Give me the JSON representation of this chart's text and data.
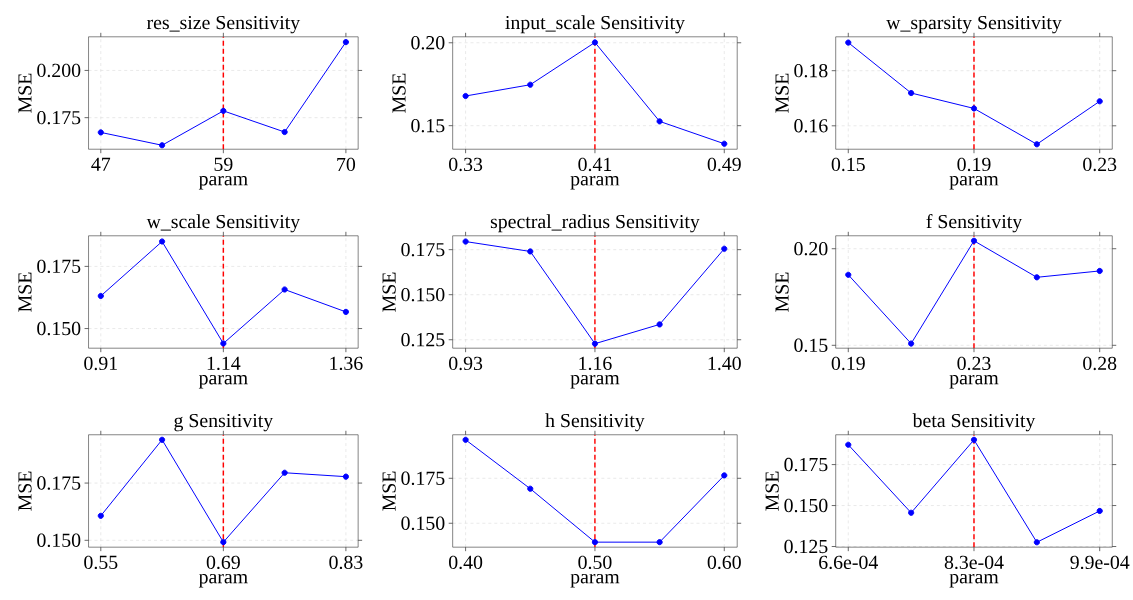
{
  "chart_data": [
    {
      "type": "line",
      "title": "res_size Sensitivity",
      "xlabel": "param",
      "ylabel": "MSE",
      "color": "#0000ff",
      "marker": "circle",
      "grid": true,
      "x": [
        47,
        52.75,
        58.5,
        64.25,
        70
      ],
      "values": [
        0.1672,
        0.1604,
        0.1786,
        0.1674,
        0.215
      ],
      "xlim": [
        45.85,
        71.15
      ],
      "ylim": [
        0.1583,
        0.2178
      ],
      "xticks": [
        {
          "value": 47,
          "label": "47"
        },
        {
          "value": 58.5,
          "label": "59"
        },
        {
          "value": 70,
          "label": "70"
        }
      ],
      "yticks": [
        {
          "value": 0.175,
          "label": "0.175"
        },
        {
          "value": 0.2,
          "label": "0.200"
        }
      ],
      "ref_lines": [
        {
          "axis": "x",
          "value": 58.5,
          "color": "#ff0000",
          "line_style": "dashed"
        }
      ]
    },
    {
      "type": "line",
      "title": "input_scale Sensitivity",
      "xlabel": "param",
      "ylabel": "MSE",
      "color": "#0000ff",
      "marker": "circle",
      "grid": true,
      "x": [
        0.33,
        0.37,
        0.41,
        0.45,
        0.49
      ],
      "values": [
        0.1679,
        0.1747,
        0.2002,
        0.1526,
        0.1391
      ],
      "xlim": [
        0.322,
        0.498
      ],
      "ylim": [
        0.1358,
        0.2036
      ],
      "xticks": [
        {
          "value": 0.33,
          "label": "0.33"
        },
        {
          "value": 0.41,
          "label": "0.41"
        },
        {
          "value": 0.49,
          "label": "0.49"
        }
      ],
      "yticks": [
        {
          "value": 0.15,
          "label": "0.15"
        },
        {
          "value": 0.2,
          "label": "0.20"
        }
      ],
      "ref_lines": [
        {
          "axis": "x",
          "value": 0.41,
          "color": "#ff0000",
          "line_style": "dashed"
        }
      ]
    },
    {
      "type": "line",
      "title": "w_sparsity Sensitivity",
      "xlabel": "param",
      "ylabel": "MSE",
      "color": "#0000ff",
      "marker": "circle",
      "grid": true,
      "x": [
        0.15,
        0.17,
        0.19,
        0.21,
        0.23
      ],
      "values": [
        0.1902,
        0.1719,
        0.1663,
        0.1533,
        0.1689
      ],
      "xlim": [
        0.146,
        0.234
      ],
      "ylim": [
        0.1515,
        0.1923
      ],
      "xticks": [
        {
          "value": 0.15,
          "label": "0.15"
        },
        {
          "value": 0.19,
          "label": "0.19"
        },
        {
          "value": 0.23,
          "label": "0.23"
        }
      ],
      "yticks": [
        {
          "value": 0.16,
          "label": "0.16"
        },
        {
          "value": 0.18,
          "label": "0.18"
        }
      ],
      "ref_lines": [
        {
          "axis": "x",
          "value": 0.19,
          "color": "#ff0000",
          "line_style": "dashed"
        }
      ]
    },
    {
      "type": "line",
      "title": "w_scale Sensitivity",
      "xlabel": "param",
      "ylabel": "MSE",
      "color": "#0000ff",
      "marker": "circle",
      "grid": true,
      "x": [
        0.91,
        1.0225,
        1.135,
        1.2475,
        1.36
      ],
      "values": [
        0.1631,
        0.185,
        0.144,
        0.1657,
        0.1567
      ],
      "xlim": [
        0.8875,
        1.3825
      ],
      "ylim": [
        0.1421,
        0.1873
      ],
      "xticks": [
        {
          "value": 0.91,
          "label": "0.91"
        },
        {
          "value": 1.135,
          "label": "1.14"
        },
        {
          "value": 1.36,
          "label": "1.36"
        }
      ],
      "yticks": [
        {
          "value": 0.15,
          "label": "0.150"
        },
        {
          "value": 0.175,
          "label": "0.175"
        }
      ],
      "ref_lines": [
        {
          "axis": "x",
          "value": 1.135,
          "color": "#ff0000",
          "line_style": "dashed"
        }
      ]
    },
    {
      "type": "line",
      "title": "spectral_radius Sensitivity",
      "xlabel": "param",
      "ylabel": "MSE",
      "color": "#0000ff",
      "marker": "circle",
      "grid": true,
      "x": [
        0.93,
        1.0475,
        1.165,
        1.2825,
        1.4
      ],
      "values": [
        0.1795,
        0.174,
        0.1228,
        0.1335,
        0.1755
      ],
      "xlim": [
        0.9065,
        1.4235
      ],
      "ylim": [
        0.1203,
        0.1827
      ],
      "xticks": [
        {
          "value": 0.93,
          "label": "0.93"
        },
        {
          "value": 1.165,
          "label": "1.16"
        },
        {
          "value": 1.4,
          "label": "1.40"
        }
      ],
      "yticks": [
        {
          "value": 0.125,
          "label": "0.125"
        },
        {
          "value": 0.15,
          "label": "0.150"
        },
        {
          "value": 0.175,
          "label": "0.175"
        }
      ],
      "ref_lines": [
        {
          "axis": "x",
          "value": 1.165,
          "color": "#ff0000",
          "line_style": "dashed"
        }
      ]
    },
    {
      "type": "line",
      "title": "f Sensitivity",
      "xlabel": "param",
      "ylabel": "MSE",
      "color": "#0000ff",
      "marker": "circle",
      "grid": true,
      "x": [
        0.19,
        0.2125,
        0.235,
        0.2575,
        0.28
      ],
      "values": [
        0.1865,
        0.1509,
        0.2041,
        0.1852,
        0.1885
      ],
      "xlim": [
        0.1855,
        0.2845
      ],
      "ylim": [
        0.1485,
        0.2067
      ],
      "xticks": [
        {
          "value": 0.19,
          "label": "0.19"
        },
        {
          "value": 0.235,
          "label": "0.23"
        },
        {
          "value": 0.28,
          "label": "0.28"
        }
      ],
      "yticks": [
        {
          "value": 0.15,
          "label": "0.15"
        },
        {
          "value": 0.2,
          "label": "0.20"
        }
      ],
      "ref_lines": [
        {
          "axis": "x",
          "value": 0.235,
          "color": "#ff0000",
          "line_style": "dashed"
        }
      ]
    },
    {
      "type": "line",
      "title": "g Sensitivity",
      "xlabel": "param",
      "ylabel": "MSE",
      "color": "#0000ff",
      "marker": "circle",
      "grid": true,
      "x": [
        0.55,
        0.62,
        0.69,
        0.76,
        0.83
      ],
      "values": [
        0.1607,
        0.1939,
        0.1492,
        0.1795,
        0.1778
      ],
      "xlim": [
        0.536,
        0.844
      ],
      "ylim": [
        0.147,
        0.1961
      ],
      "xticks": [
        {
          "value": 0.55,
          "label": "0.55"
        },
        {
          "value": 0.69,
          "label": "0.69"
        },
        {
          "value": 0.83,
          "label": "0.83"
        }
      ],
      "yticks": [
        {
          "value": 0.15,
          "label": "0.150"
        },
        {
          "value": 0.175,
          "label": "0.175"
        }
      ],
      "ref_lines": [
        {
          "axis": "x",
          "value": 0.69,
          "color": "#ff0000",
          "line_style": "dashed"
        }
      ]
    },
    {
      "type": "line",
      "title": "h Sensitivity",
      "xlabel": "param",
      "ylabel": "MSE",
      "color": "#0000ff",
      "marker": "circle",
      "grid": true,
      "x": [
        0.4,
        0.45,
        0.5,
        0.55,
        0.6
      ],
      "values": [
        0.1964,
        0.1692,
        0.1395,
        0.1395,
        0.1766
      ],
      "xlim": [
        0.39,
        0.61
      ],
      "ylim": [
        0.1367,
        0.1992
      ],
      "xticks": [
        {
          "value": 0.4,
          "label": "0.40"
        },
        {
          "value": 0.5,
          "label": "0.50"
        },
        {
          "value": 0.6,
          "label": "0.60"
        }
      ],
      "yticks": [
        {
          "value": 0.15,
          "label": "0.150"
        },
        {
          "value": 0.175,
          "label": "0.175"
        }
      ],
      "ref_lines": [
        {
          "axis": "x",
          "value": 0.5,
          "color": "#ff0000",
          "line_style": "dashed"
        }
      ]
    },
    {
      "type": "line",
      "title": "beta Sensitivity",
      "xlabel": "param",
      "ylabel": "MSE",
      "color": "#0000ff",
      "marker": "circle",
      "grid": true,
      "x": [
        0.00066,
        0.0007425,
        0.000825,
        0.0009075,
        0.00099
      ],
      "values": [
        0.1871,
        0.1456,
        0.1901,
        0.1276,
        0.1467
      ],
      "xlim": [
        0.0006435,
        0.0010065
      ],
      "ylim": [
        0.1246,
        0.1932
      ],
      "xticks": [
        {
          "value": 0.00066,
          "label": "6.6e-04"
        },
        {
          "value": 0.000825,
          "label": "8.3e-04"
        },
        {
          "value": 0.00099,
          "label": "9.9e-04"
        }
      ],
      "yticks": [
        {
          "value": 0.125,
          "label": "0.125"
        },
        {
          "value": 0.15,
          "label": "0.150"
        },
        {
          "value": 0.175,
          "label": "0.175"
        }
      ],
      "ref_lines": [
        {
          "axis": "x",
          "value": 0.000825,
          "color": "#ff0000",
          "line_style": "dashed"
        }
      ]
    }
  ]
}
